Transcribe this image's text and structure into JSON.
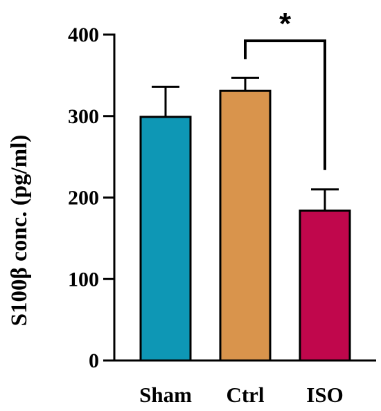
{
  "chart_data": {
    "type": "bar",
    "title": "",
    "xlabel": "",
    "ylabel": "S100β conc. (pg/ml)",
    "ylim": [
      0,
      400
    ],
    "yticks": [
      "0",
      "100",
      "200",
      "300",
      "400"
    ],
    "categories": [
      "Sham",
      "Ctrl",
      "ISO"
    ],
    "values": [
      299,
      331,
      184
    ],
    "errors": [
      37,
      16,
      26
    ],
    "bar_colors": [
      "#0e97b5",
      "#d9944c",
      "#c0074c"
    ],
    "significance": {
      "from": "Ctrl",
      "to": "ISO",
      "label": "*"
    },
    "grid": false,
    "legend": "none"
  }
}
